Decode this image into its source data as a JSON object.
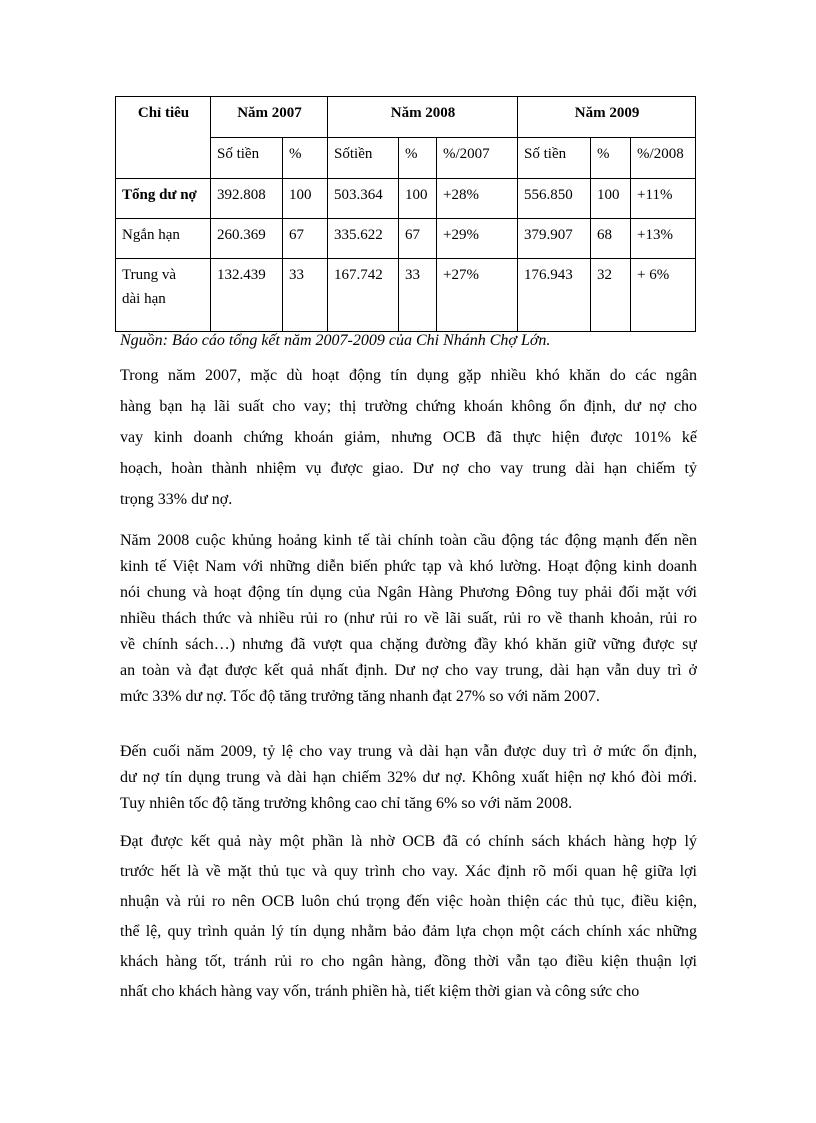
{
  "table": {
    "header": {
      "indicator": "Chỉ tiêu",
      "years": [
        "Năm 2007",
        "Năm 2008",
        "Năm 2009"
      ]
    },
    "subheader": [
      "Số tiền",
      "%",
      "Sốtiền",
      "%",
      "%/2007",
      "Số tiền",
      "%",
      "%/2008"
    ],
    "rows": [
      {
        "label": "Tổng dư nợ",
        "cells": [
          "392.808",
          "100",
          "503.364",
          "100",
          "+28%",
          "556.850",
          "100",
          "+11%"
        ]
      },
      {
        "label": "Ngắn hạn",
        "cells": [
          "260.369",
          "67",
          "335.622",
          "67",
          "+29%",
          "379.907",
          "68",
          "+13%"
        ]
      },
      {
        "label_lines": [
          "Trung và",
          "dài hạn"
        ],
        "cells": [
          "132.439",
          "33",
          "167.742",
          "33",
          "+27%",
          "176.943",
          "32",
          "+ 6%"
        ]
      }
    ]
  },
  "caption": "Nguồn: Báo cáo tổng kết năm 2007-2009 của Chi Nhánh Chợ Lớn.",
  "paragraphs": [
    [
      "Trong năm 2007, mặc dù hoạt động tín dụng gặp nhiều khó khăn do các ngân",
      "hàng bạn hạ lãi suất cho vay; thị trường chứng khoán không ổn định, dư nợ cho",
      "vay kinh doanh chứng khoán giảm, nhưng OCB đã thực hiện được 101% kế",
      "hoạch, hoàn thành nhiệm vụ được giao. Dư nợ cho vay trung dài hạn chiếm tỷ",
      "trọng 33% dư nợ."
    ],
    [
      "Năm 2008 cuộc khủng hoảng kinh tế tài chính toàn cầu động tác động mạnh đến nền",
      "kinh tế Việt Nam với những diễn biến phức tạp và khó lường. Hoạt động kinh doanh",
      "nói chung và hoạt động tín dụng của Ngân Hàng Phương Đông tuy phải đối mặt với",
      "nhiều thách thức và nhiều rủi ro (như rủi ro về lãi suất, rủi ro về thanh khoản, rủi ro",
      "về chính sách…) nhưng đã vượt qua chặng đường đầy khó khăn giữ vững được sự",
      "an toàn và đạt được kết quả nhất định. Dư nợ cho vay trung, dài hạn vẫn duy trì ở",
      "mức 33% dư nợ. Tốc độ tăng trưởng tăng nhanh đạt 27% so với năm 2007."
    ],
    [
      "Đến cuối năm 2009, tỷ lệ cho vay trung và dài hạn vẫn được duy trì ở mức ổn định,",
      "dư nợ tín dụng trung và dài hạn chiếm 32% dư nợ. Không xuất hiện nợ khó đòi mới.",
      "Tuy nhiên tốc độ tăng trưởng không cao chỉ tăng 6% so với năm 2008."
    ],
    [
      "Đạt được kết quả này một phần là nhờ OCB đã có chính sách khách hàng hợp lý",
      "trước hết là về mặt thủ tục và quy trình cho vay. Xác định rõ mối quan hệ giữa lợi",
      "nhuận và rủi ro nên OCB luôn chú trọng đến việc hoàn thiện các thủ tục, điều kiện,",
      "thể lệ, quy trình quản lý tín dụng nhằm bảo đảm lựa chọn một cách chính xác những",
      "khách hàng tốt, tránh rủi ro cho ngân hàng, đồng thời vẫn tạo điều kiện thuận lợi",
      "nhất cho khách hàng vay vốn, tránh phiền hà, tiết kiệm thời gian và công sức cho"
    ]
  ]
}
